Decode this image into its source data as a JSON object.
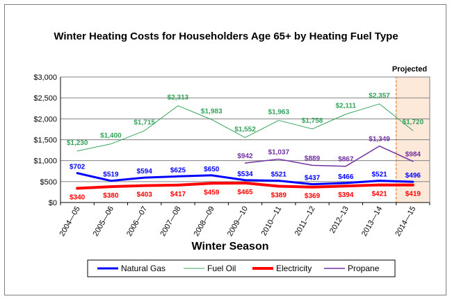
{
  "chart_data": {
    "type": "line",
    "title": "Winter Heating Costs for Householders Age 65+ by Heating Fuel Type",
    "xlabel": "Winter Season",
    "ylabel": "",
    "ylim": [
      0,
      3000
    ],
    "yticks": [
      0,
      500,
      1000,
      1500,
      2000,
      2500,
      3000
    ],
    "ytick_labels": [
      "$0",
      "$500",
      "$1,000",
      "$1,500",
      "$2,000",
      "$2,500",
      "$3,000"
    ],
    "categories": [
      "2004—05",
      "2005—06",
      "2006—07",
      "2007—08",
      "2008—09",
      "2009—10",
      "2010—11",
      "2011—12",
      "2012–13",
      "2013—14",
      "2014—15"
    ],
    "projected_label": "Projected",
    "projected_category": "2014—15",
    "legend_position": "bottom",
    "series": [
      {
        "name": "Natural Gas",
        "color": "#0000ff",
        "values": [
          702,
          519,
          594,
          625,
          650,
          534,
          521,
          437,
          466,
          521,
          496
        ],
        "labels": [
          "$702",
          "$519",
          "$594",
          "$625",
          "$650",
          "$534",
          "$521",
          "$437",
          "$466",
          "$521",
          "$496"
        ]
      },
      {
        "name": "Fuel Oil",
        "color": "#33a35a",
        "values": [
          1230,
          1400,
          1715,
          2313,
          1983,
          1552,
          1963,
          1758,
          2111,
          2357,
          1720
        ],
        "labels": [
          "$1,230",
          "$1,400",
          "$1,715",
          "$2,313",
          "$1,983",
          "$1,552",
          "$1,963",
          "$1,758",
          "$2,111",
          "$2,357",
          "$1,720"
        ]
      },
      {
        "name": "Electricity",
        "color": "#ff0000",
        "values": [
          340,
          380,
          403,
          417,
          459,
          465,
          389,
          369,
          394,
          421,
          419
        ],
        "labels": [
          "$340",
          "$380",
          "$403",
          "$417",
          "$459",
          "$465",
          "$389",
          "$369",
          "$394",
          "$421",
          "$419"
        ]
      },
      {
        "name": "Propane",
        "color": "#7030a0",
        "values": [
          null,
          null,
          null,
          null,
          null,
          942,
          1037,
          889,
          867,
          1349,
          984
        ],
        "labels": [
          null,
          null,
          null,
          null,
          null,
          "$942",
          "$1,037",
          "$889",
          "$867",
          "$1,349",
          "$984"
        ]
      }
    ]
  }
}
